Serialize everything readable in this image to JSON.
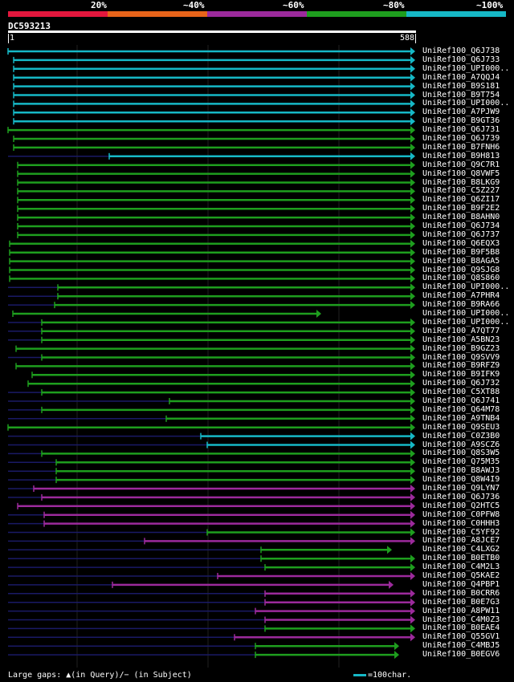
{
  "legend": {
    "colors": [
      "#e3173d",
      "#e8641a",
      "#9c2a9c",
      "#1e9e1e",
      "#16b8c6"
    ],
    "labels": [
      "20%",
      "~40%",
      "~60%",
      "~80%",
      "~100%"
    ]
  },
  "query": {
    "id": "DC593213",
    "start": "1",
    "end": "588"
  },
  "hits": [
    {
      "name": "UniRef100_Q6J738",
      "c": "#16b8c6"
    },
    {
      "name": "UniRef100_Q6J733",
      "c": "#16b8c6"
    },
    {
      "name": "UniRef100_UPI000..",
      "c": "#16b8c6"
    },
    {
      "name": "UniRef100_A7QQJ4",
      "c": "#16b8c6"
    },
    {
      "name": "UniRef100_B9S181",
      "c": "#16b8c6"
    },
    {
      "name": "UniRef100_B9T754",
      "c": "#16b8c6"
    },
    {
      "name": "UniRef100_UPI000..",
      "c": "#16b8c6"
    },
    {
      "name": "UniRef100_A7PJW9",
      "c": "#16b8c6"
    },
    {
      "name": "UniRef100_B9GT36",
      "c": "#16b8c6"
    },
    {
      "name": "UniRef100_Q6J731",
      "c": "#1e9e1e"
    },
    {
      "name": "UniRef100_Q6J739",
      "c": "#1e9e1e"
    },
    {
      "name": "UniRef100_B7FNH6",
      "c": "#1e9e1e"
    },
    {
      "name": "UniRef100_B9H813",
      "c": "#16b8c6"
    },
    {
      "name": "UniRef100_Q9C7R1",
      "c": "#1e9e1e"
    },
    {
      "name": "UniRef100_Q8VWF5",
      "c": "#1e9e1e"
    },
    {
      "name": "UniRef100_B8LKG9",
      "c": "#1e9e1e"
    },
    {
      "name": "UniRef100_C5Z227",
      "c": "#1e9e1e"
    },
    {
      "name": "UniRef100_Q6ZI17",
      "c": "#1e9e1e"
    },
    {
      "name": "UniRef100_B9F2E2",
      "c": "#1e9e1e"
    },
    {
      "name": "UniRef100_B8AHN0",
      "c": "#1e9e1e"
    },
    {
      "name": "UniRef100_Q6J734",
      "c": "#1e9e1e"
    },
    {
      "name": "UniRef100_Q6J737",
      "c": "#1e9e1e"
    },
    {
      "name": "UniRef100_Q6EQX3",
      "c": "#1e9e1e"
    },
    {
      "name": "UniRef100_B9F5B8",
      "c": "#1e9e1e"
    },
    {
      "name": "UniRef100_B8AGA5",
      "c": "#1e9e1e"
    },
    {
      "name": "UniRef100_Q9SJG8",
      "c": "#1e9e1e"
    },
    {
      "name": "UniRef100_Q8S860",
      "c": "#1e9e1e"
    },
    {
      "name": "UniRef100_UPI000..",
      "c": "#1e9e1e"
    },
    {
      "name": "UniRef100_A7PHR4",
      "c": "#1e9e1e"
    },
    {
      "name": "UniRef100_B9RA66",
      "c": "#1e9e1e"
    },
    {
      "name": "UniRef100_UPI000..",
      "c": "#1e9e1e"
    },
    {
      "name": "UniRef100_UPI000..",
      "c": "#1e9e1e"
    },
    {
      "name": "UniRef100_A7QT77",
      "c": "#1e9e1e"
    },
    {
      "name": "UniRef100_A5BN23",
      "c": "#1e9e1e"
    },
    {
      "name": "UniRef100_B9GZ23",
      "c": "#1e9e1e"
    },
    {
      "name": "UniRef100_Q9SVV9",
      "c": "#1e9e1e"
    },
    {
      "name": "UniRef100_B9RFZ9",
      "c": "#1e9e1e"
    },
    {
      "name": "UniRef100_B9IFK9",
      "c": "#1e9e1e"
    },
    {
      "name": "UniRef100_Q6J732",
      "c": "#1e9e1e"
    },
    {
      "name": "UniRef100_C5XT88",
      "c": "#1e9e1e"
    },
    {
      "name": "UniRef100_Q6J741",
      "c": "#1e9e1e"
    },
    {
      "name": "UniRef100_Q64M78",
      "c": "#1e9e1e"
    },
    {
      "name": "UniRef100_A9TNB4",
      "c": "#1e9e1e"
    },
    {
      "name": "UniRef100_Q9SEU3",
      "c": "#1e9e1e"
    },
    {
      "name": "UniRef100_C0Z3B0",
      "c": "#16b8c6"
    },
    {
      "name": "UniRef100_A9SCZ6",
      "c": "#16b8c6"
    },
    {
      "name": "UniRef100_Q8S3W5",
      "c": "#1e9e1e"
    },
    {
      "name": "UniRef100_Q75M35",
      "c": "#1e9e1e"
    },
    {
      "name": "UniRef100_B8AWJ3",
      "c": "#1e9e1e"
    },
    {
      "name": "UniRef100_Q8W4I9",
      "c": "#1e9e1e"
    },
    {
      "name": "UniRef100_Q9LYN7",
      "c": "#9c2a9c"
    },
    {
      "name": "UniRef100_Q6J736",
      "c": "#9c2a9c"
    },
    {
      "name": "UniRef100_Q2HTC5",
      "c": "#9c2a9c"
    },
    {
      "name": "UniRef100_C0PFW8",
      "c": "#9c2a9c"
    },
    {
      "name": "UniRef100_C0HHH3",
      "c": "#9c2a9c"
    },
    {
      "name": "UniRef100_C5YF92",
      "c": "#1e9e1e"
    },
    {
      "name": "UniRef100_A8JCE7",
      "c": "#9c2a9c"
    },
    {
      "name": "UniRef100_C4LXG2",
      "c": "#1e9e1e"
    },
    {
      "name": "UniRef100_B0ETB0",
      "c": "#1e9e1e"
    },
    {
      "name": "UniRef100_C4M2L3",
      "c": "#1e9e1e"
    },
    {
      "name": "UniRef100_Q5KAE2",
      "c": "#9c2a9c"
    },
    {
      "name": "UniRef100_Q4PBP1",
      "c": "#9c2a9c"
    },
    {
      "name": "UniRef100_B0CRR6",
      "c": "#9c2a9c"
    },
    {
      "name": "UniRef100_B0E7G3",
      "c": "#9c2a9c"
    },
    {
      "name": "UniRef100_A8PW11",
      "c": "#9c2a9c"
    },
    {
      "name": "UniRef100_C4M0Z3",
      "c": "#9c2a9c"
    },
    {
      "name": "UniRef100_B0EAE4",
      "c": "#1e9e1e"
    },
    {
      "name": "UniRef100_Q55GV1",
      "c": "#9c2a9c"
    },
    {
      "name": "UniRef100_C4MBJ5",
      "c": "#1e9e1e"
    },
    {
      "name": "UniRef100_B0EGV6",
      "c": "#1e9e1e"
    }
  ],
  "footer": {
    "text": "Large gaps: ▲(in Query)/− (in Subject)",
    "scale": "=100char."
  }
}
